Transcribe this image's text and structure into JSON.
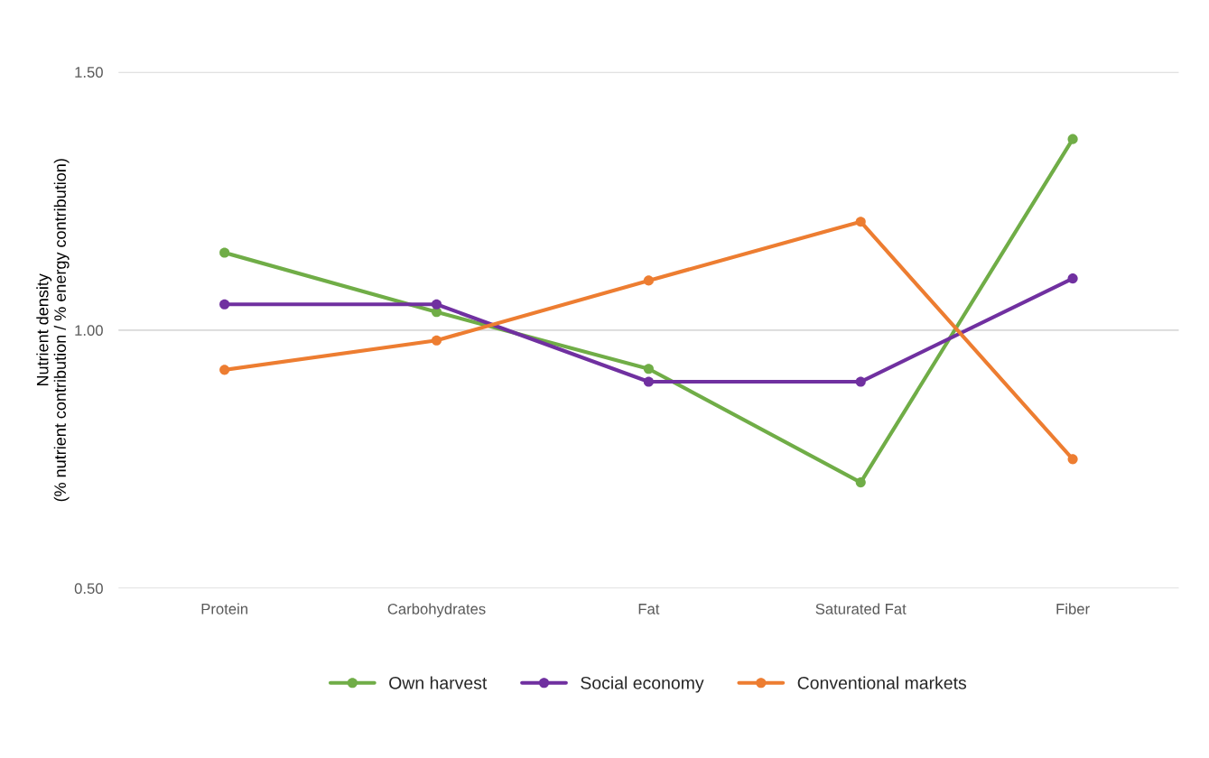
{
  "chart_data": {
    "type": "line",
    "ylabel": "Nutrient density\n(% nutrient contribution / % energy contribution)",
    "categories": [
      "Protein",
      "Carbohydrates",
      "Fat",
      "Saturated Fat",
      "Fiber"
    ],
    "series": [
      {
        "name": "Own harvest",
        "color": "#70ad47",
        "values": [
          1.15,
          1.035,
          0.925,
          0.705,
          1.37
        ]
      },
      {
        "name": "Social economy",
        "color": "#7030a0",
        "values": [
          1.05,
          1.05,
          0.9,
          0.9,
          1.1
        ]
      },
      {
        "name": "Conventional markets",
        "color": "#ed7d31",
        "values": [
          0.923,
          0.98,
          1.096,
          1.21,
          0.75
        ]
      }
    ],
    "ylim": [
      0.5,
      1.5
    ],
    "yticks": [
      {
        "value": 0.5,
        "label": "0.50"
      },
      {
        "value": 1.0,
        "label": "1.00"
      },
      {
        "value": 1.5,
        "label": "1.50"
      }
    ],
    "grid": "y",
    "legend": "bottom",
    "marker": "circle",
    "line_style": "solid"
  }
}
